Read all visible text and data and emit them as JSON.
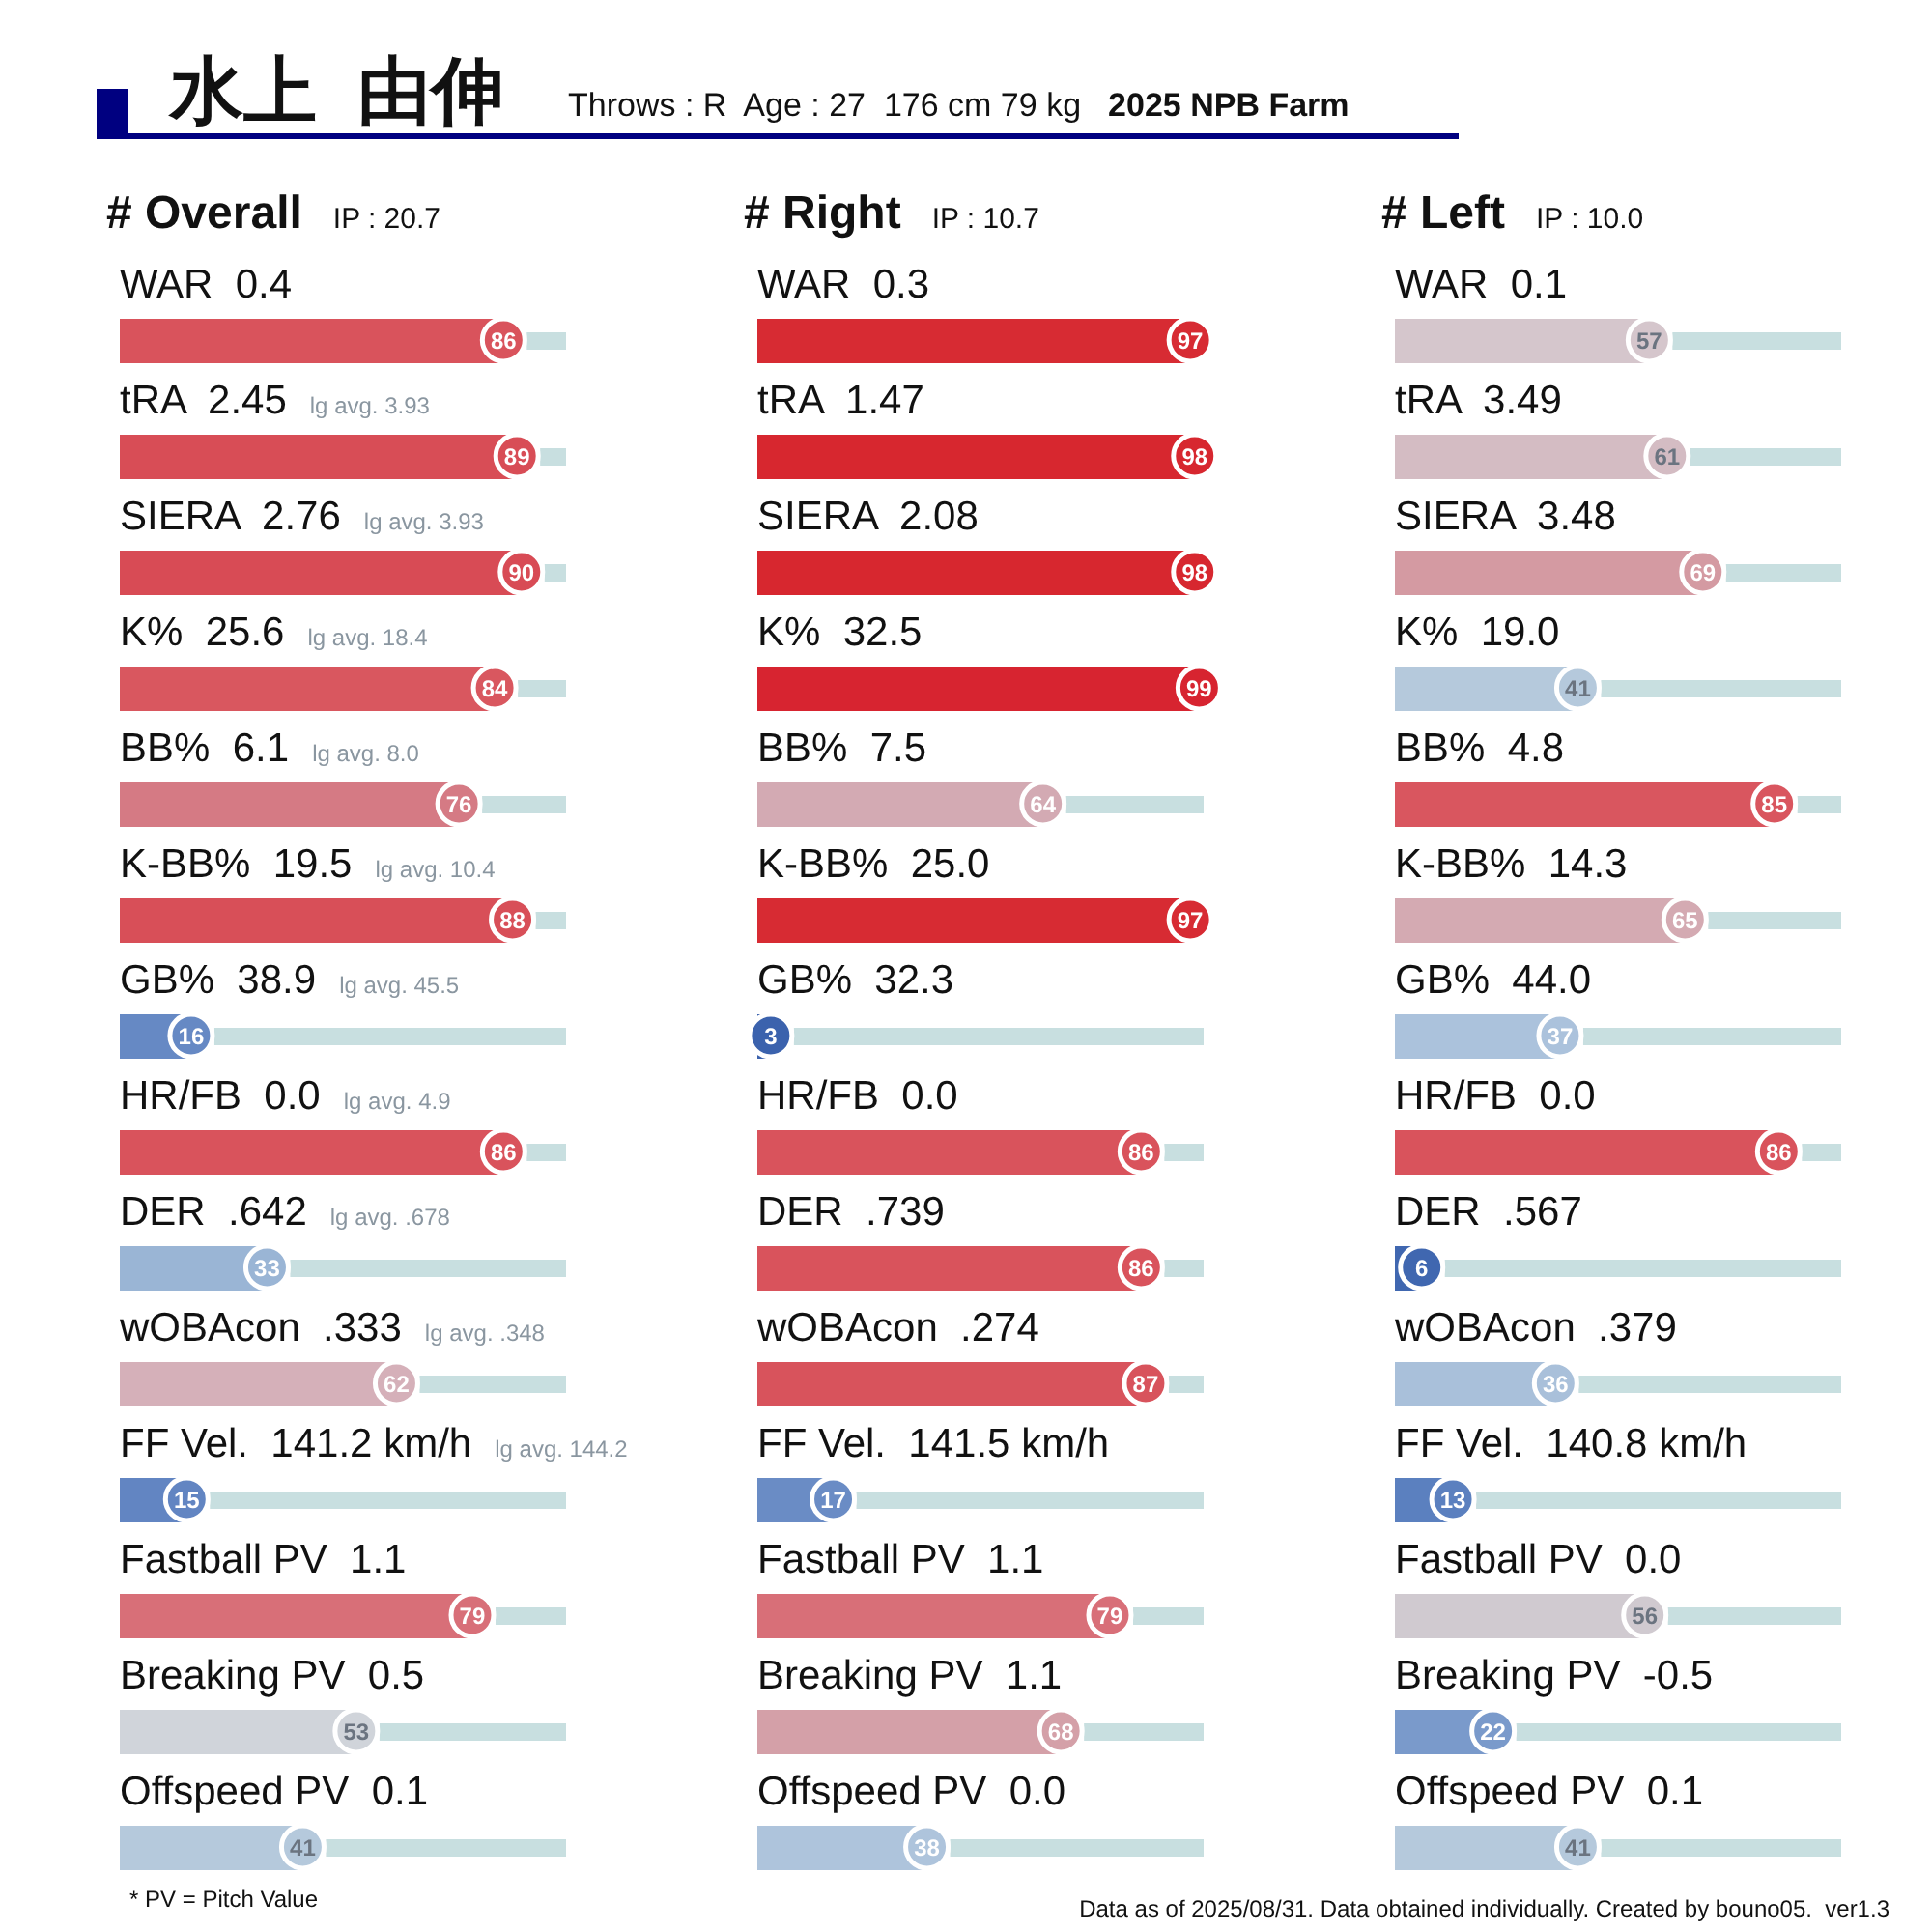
{
  "chart_data": [
    {
      "type": "other",
      "title": "水上  由伸",
      "subtitle": "Throws : R  Age : 27  176 cm 79 kg",
      "annotations": [
        "2025 NPB Farm",
        "* PV = Pitch Value",
        "Data as of 2025/08/31. Data obtained individually. Created by bouno05.  ver1.3"
      ]
    },
    {
      "type": "bar",
      "orientation": "horizontal",
      "title": "# Overall",
      "subtitle": "IP : 20.7",
      "xlim": [
        0,
        100
      ],
      "data_labels": true,
      "categories": [
        "WAR  0.4",
        "tRA  2.45",
        "SIERA  2.76",
        "K%  25.6",
        "BB%  6.1",
        "K-BB%  19.5",
        "GB%  38.9",
        "HR/FB  0.0",
        "DER  .642",
        "wOBAcon  .333",
        "FF Vel.  141.2 km/h",
        "Fastball PV  1.1",
        "Breaking PV  0.5",
        "Offspeed PV  0.1"
      ],
      "values": [
        86,
        89,
        90,
        84,
        76,
        88,
        16,
        86,
        33,
        62,
        15,
        79,
        53,
        41
      ],
      "colors": [
        "#d9535c",
        "#d84d56",
        "#d84b55",
        "#d9575f",
        "#d57a84",
        "#d84f58",
        "#6689c4",
        "#d9535c",
        "#9ab5d5",
        "#d5b0b9",
        "#6285c2",
        "#d86f78",
        "#d0d4da",
        "#b5c9dc"
      ],
      "annotations": [
        "lg avg. 3.93",
        "lg avg. 3.93",
        "lg avg. 18.4",
        "lg avg. 8.0",
        "lg avg. 10.4",
        "lg avg. 45.5",
        "lg avg. 4.9",
        "lg avg. .678",
        "lg avg. .348",
        "lg avg. 144.2"
      ]
    },
    {
      "type": "bar",
      "orientation": "horizontal",
      "title": "# Right",
      "subtitle": "IP : 10.7",
      "xlim": [
        0,
        100
      ],
      "data_labels": true,
      "categories": [
        "WAR  0.3",
        "tRA  1.47",
        "SIERA  2.08",
        "K%  32.5",
        "BB%  7.5",
        "K-BB%  25.0",
        "GB%  32.3",
        "HR/FB  0.0",
        "DER  .739",
        "wOBAcon  .274",
        "FF Vel.  141.5 km/h",
        "Fastball PV  1.1",
        "Breaking PV  1.1",
        "Offspeed PV  0.0"
      ],
      "values": [
        97,
        98,
        98,
        99,
        64,
        97,
        3,
        86,
        86,
        87,
        17,
        79,
        68,
        38
      ],
      "colors": [
        "#d72b33",
        "#d7272f",
        "#d7272f",
        "#d72430",
        "#d3aab3",
        "#d72b33",
        "#3b62ad",
        "#d9535c",
        "#d9535c",
        "#d8535c",
        "#6a8cc5",
        "#d86f78",
        "#d4a0a8",
        "#aec4dc"
      ]
    },
    {
      "type": "bar",
      "orientation": "horizontal",
      "title": "# Left",
      "subtitle": "IP : 10.0",
      "xlim": [
        0,
        100
      ],
      "data_labels": true,
      "categories": [
        "WAR  0.1",
        "tRA  3.49",
        "SIERA  3.48",
        "K%  19.0",
        "BB%  4.8",
        "K-BB%  14.3",
        "GB%  44.0",
        "HR/FB  0.0",
        "DER  .567",
        "wOBAcon  .379",
        "FF Vel.  140.8 km/h",
        "Fastball PV  0.0",
        "Breaking PV  -0.5",
        "Offspeed PV  0.1"
      ],
      "values": [
        57,
        61,
        69,
        41,
        85,
        65,
        37,
        86,
        6,
        36,
        13,
        56,
        22,
        41
      ],
      "colors": [
        "#d5c6cc",
        "#d4bcc3",
        "#d49aa2",
        "#b5c9dc",
        "#d9565f",
        "#d4aab2",
        "#abc2dc",
        "#d9535c",
        "#4067b0",
        "#a9c0da",
        "#5b80bf",
        "#d0cad0",
        "#7a9acb",
        "#b5c9dc"
      ]
    }
  ]
}
